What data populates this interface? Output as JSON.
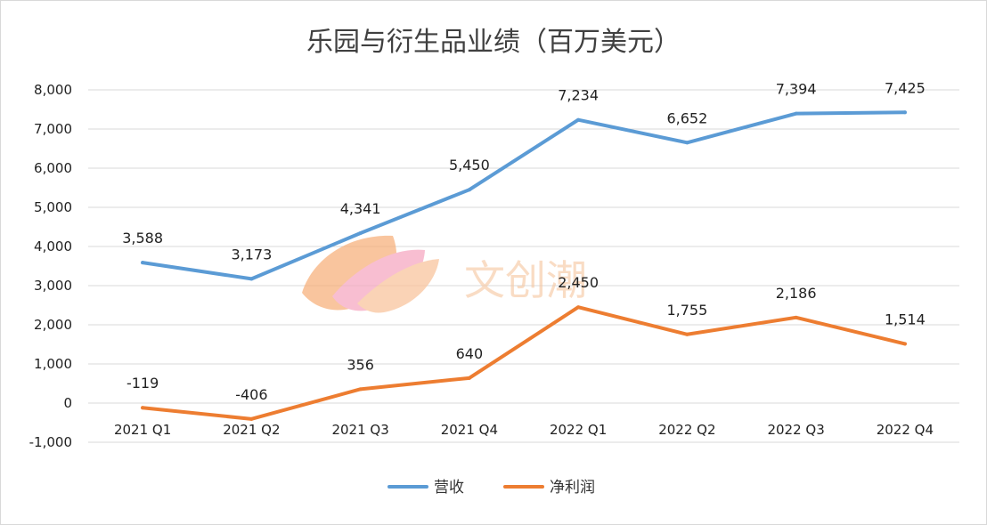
{
  "chart_data": {
    "type": "line",
    "title": "乐园与衍生品业绩（百万美元）",
    "categories": [
      "2021 Q1",
      "2021 Q2",
      "2021 Q3",
      "2021 Q4",
      "2022 Q1",
      "2022 Q2",
      "2022 Q3",
      "2022 Q4"
    ],
    "series": [
      {
        "name": "营收",
        "color": "#5b9bd5",
        "values": [
          3588,
          3173,
          4341,
          5450,
          7234,
          6652,
          7394,
          7425
        ],
        "labels": [
          "3,588",
          "3,173",
          "4,341",
          "5,450",
          "7,234",
          "6,652",
          "7,394",
          "7,425"
        ]
      },
      {
        "name": "净利润",
        "color": "#ed7d31",
        "values": [
          -119,
          -406,
          356,
          640,
          2450,
          1755,
          2186,
          1514
        ],
        "labels": [
          "-119",
          "-406",
          "356",
          "640",
          "2,450",
          "1,755",
          "2,186",
          "1,514"
        ]
      }
    ],
    "ylim": [
      -1000,
      8000
    ],
    "yticks": [
      8000,
      7000,
      6000,
      5000,
      4000,
      3000,
      2000,
      1000,
      0,
      -1000
    ],
    "ytick_labels": [
      "8,000",
      "7,000",
      "6,000",
      "5,000",
      "4,000",
      "3,000",
      "2,000",
      "1,000",
      "0",
      "-1,000"
    ],
    "grid": true,
    "legend_position": "bottom"
  },
  "watermark": {
    "text": "文创潮",
    "icon": "leaf-logo-icon"
  }
}
